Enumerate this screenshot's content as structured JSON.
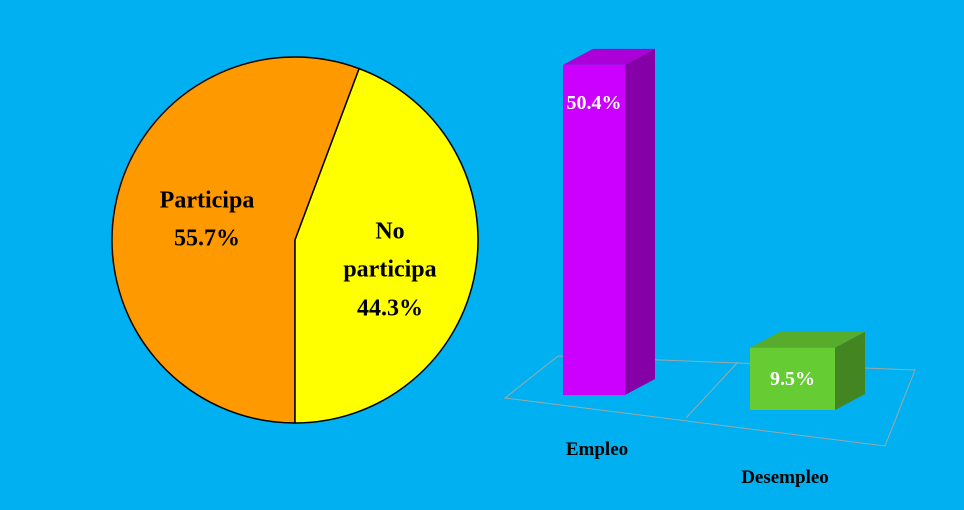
{
  "chart_data": [
    {
      "type": "pie",
      "categories": [
        "Participa",
        "No participa"
      ],
      "values": [
        55.7,
        44.3
      ],
      "value_labels": [
        "55.7%",
        "44.3%"
      ],
      "colors": [
        "#ff9900",
        "#ffff00"
      ]
    },
    {
      "type": "bar3d",
      "categories": [
        "Empleo",
        "Desempleo"
      ],
      "values": [
        50.4,
        9.5
      ],
      "value_labels": [
        "50.4%",
        "9.5%"
      ],
      "colors": [
        "#cc00ff",
        "#66cc33"
      ]
    }
  ]
}
